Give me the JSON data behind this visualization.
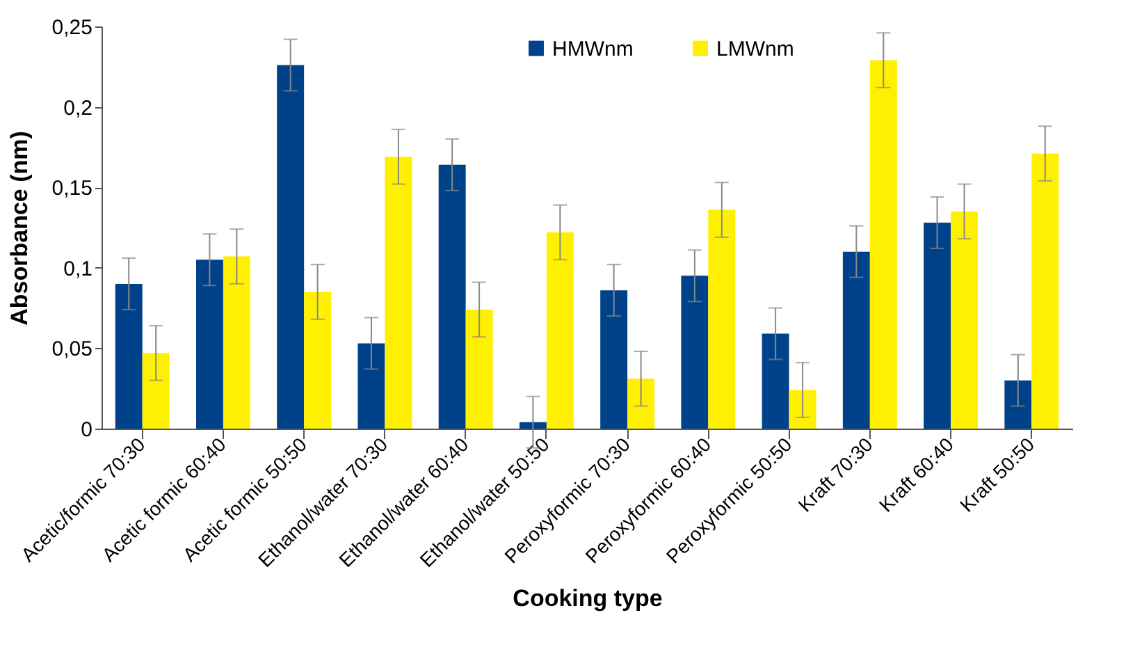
{
  "chart_data": {
    "type": "bar",
    "xlabel": "Cooking type",
    "ylabel": "Absorbance (nm)",
    "categories": [
      "Acetic/formic 70:30",
      "Acetic formic 60:40",
      "Acetic formic 50:50",
      "Ethanol/water 70:30",
      "Ethanol/water 60:40",
      "Ethanol/water 50:50",
      "Peroxyformic 70:30",
      "Peroxyformic 60:40",
      "Peroxyformic 50:50",
      "Kraft 70:30",
      "Kraft 60:40",
      "Kraft 50:50"
    ],
    "series": [
      {
        "name": "HMWnm",
        "color": "#00428a",
        "values": [
          0.09,
          0.105,
          0.226,
          0.053,
          0.164,
          0.004,
          0.086,
          0.095,
          0.059,
          0.11,
          0.128,
          0.03
        ],
        "errors": [
          0.016,
          0.016,
          0.016,
          0.016,
          0.016,
          0.016,
          0.016,
          0.016,
          0.016,
          0.016,
          0.016,
          0.016
        ]
      },
      {
        "name": "LMWnm",
        "color": "#ffef00",
        "values": [
          0.047,
          0.107,
          0.085,
          0.169,
          0.074,
          0.122,
          0.031,
          0.136,
          0.024,
          0.229,
          0.135,
          0.171
        ],
        "errors": [
          0.017,
          0.017,
          0.017,
          0.017,
          0.017,
          0.017,
          0.017,
          0.017,
          0.017,
          0.017,
          0.017,
          0.017
        ]
      }
    ],
    "ylim": [
      0,
      0.25
    ],
    "yticks": [
      0,
      {
        "value": 0.05,
        "label": "0,05"
      },
      {
        "value": 0.1,
        "label": "0,1"
      },
      {
        "value": 0.15,
        "label": "0,15"
      },
      {
        "value": 0.2,
        "label": "0,2"
      },
      {
        "value": 0.25,
        "label": "0,25"
      }
    ],
    "grid": false,
    "legend": "top"
  }
}
